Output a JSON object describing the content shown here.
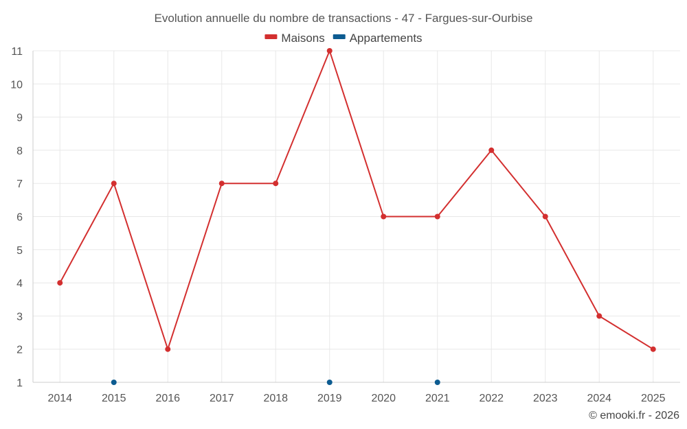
{
  "chart_data": {
    "type": "line",
    "title": "Evolution annuelle du nombre de transactions - 47 - Fargues-sur-Ourbise",
    "categories": [
      "2014",
      "2015",
      "2016",
      "2017",
      "2018",
      "2019",
      "2020",
      "2021",
      "2022",
      "2023",
      "2024",
      "2025"
    ],
    "yticks": [
      "1",
      "2",
      "3",
      "4",
      "5",
      "6",
      "7",
      "8",
      "9",
      "10",
      "11"
    ],
    "ylim": [
      1,
      11
    ],
    "legend_position": "top-center",
    "grid": true,
    "series": [
      {
        "name": "Maisons",
        "color": "#d32f2f",
        "connected": true,
        "values": [
          4,
          7,
          2,
          7,
          7,
          11,
          6,
          6,
          8,
          6,
          3,
          2
        ]
      },
      {
        "name": "Appartements",
        "color": "#0d5c91",
        "connected": false,
        "values": [
          null,
          1,
          null,
          null,
          null,
          1,
          null,
          1,
          null,
          null,
          null,
          null
        ]
      }
    ]
  },
  "credit": "© emooki.fr - 2026"
}
